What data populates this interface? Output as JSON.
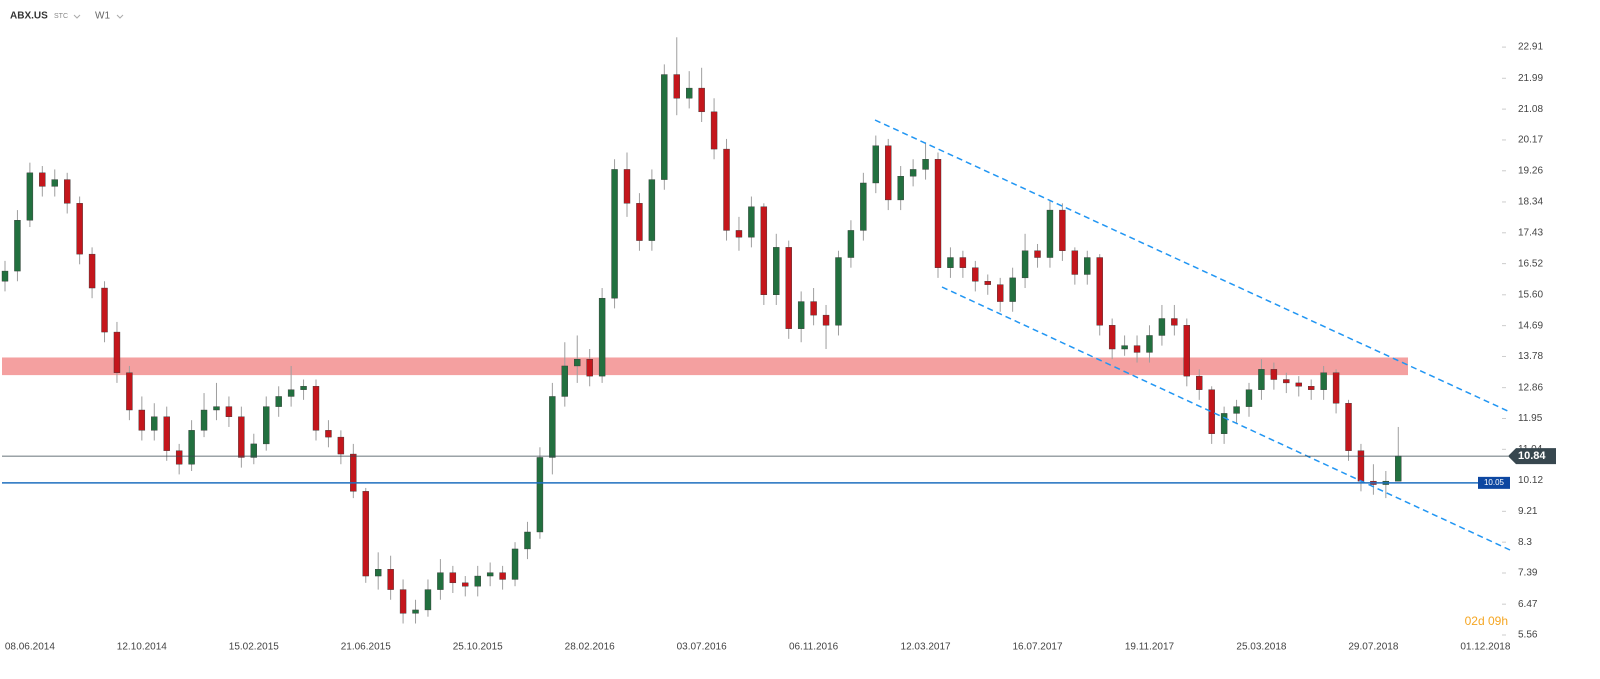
{
  "chart_data": {
    "type": "candlestick",
    "title": "ABX.US",
    "price_type": "STC",
    "interval": "W1",
    "countdown": "02d 09h",
    "up_color": "#22703f",
    "down_color": "#c4161c",
    "wick_color": "#9e9e9e",
    "categories": [
      null,
      null,
      "08.06.2014",
      null,
      null,
      null,
      null,
      null,
      null,
      null,
      null,
      "12.10.2014",
      null,
      null,
      null,
      null,
      null,
      null,
      null,
      null,
      "15.02.2015",
      null,
      null,
      null,
      null,
      null,
      null,
      null,
      null,
      "21.06.2015",
      null,
      null,
      null,
      null,
      null,
      null,
      null,
      null,
      "25.10.2015",
      null,
      null,
      null,
      null,
      null,
      null,
      null,
      null,
      "28.02.2016",
      null,
      null,
      null,
      null,
      null,
      null,
      null,
      null,
      "03.07.2016",
      null,
      null,
      null,
      null,
      null,
      null,
      null,
      null,
      "06.11.2016",
      null,
      null,
      null,
      null,
      null,
      null,
      null,
      null,
      "12.03.2017",
      null,
      null,
      null,
      null,
      null,
      null,
      null,
      null,
      "16.07.2017",
      null,
      null,
      null,
      null,
      null,
      null,
      null,
      null,
      "19.11.2017",
      null,
      null,
      null,
      null,
      null,
      null,
      null,
      null,
      "25.03.2018",
      null,
      null,
      null,
      null,
      null,
      null,
      null,
      null,
      "29.07.2018",
      null,
      null,
      null,
      null,
      null,
      null,
      null,
      null,
      "01.12.2018"
    ],
    "open": [
      16.0,
      16.3,
      17.8,
      19.2,
      18.8,
      19.0,
      18.3,
      16.8,
      15.8,
      14.5,
      13.3,
      12.2,
      11.6,
      12.0,
      11.0,
      10.6,
      11.6,
      12.2,
      12.3,
      12.0,
      10.8,
      11.2,
      12.3,
      12.6,
      12.8,
      12.9,
      11.6,
      11.4,
      10.9,
      9.8,
      7.3,
      7.5,
      6.9,
      6.2,
      6.3,
      6.9,
      7.4,
      7.1,
      7.0,
      7.3,
      7.4,
      7.2,
      8.1,
      8.6,
      10.8,
      12.6,
      13.5,
      13.7,
      13.2,
      15.5,
      19.3,
      18.3,
      17.2,
      19.0,
      22.1,
      21.4,
      21.7,
      21.0,
      19.9,
      17.5,
      17.3,
      18.2,
      15.6,
      17.0,
      14.6,
      15.4,
      15.0,
      14.7,
      16.7,
      17.5,
      18.9,
      20.0,
      18.4,
      19.1,
      19.3,
      19.6,
      16.4,
      16.7,
      16.4,
      16.0,
      15.9,
      15.4,
      16.1,
      16.9,
      16.7,
      18.1,
      16.9,
      16.2,
      16.7,
      14.7,
      14.0,
      14.1,
      13.9,
      14.4,
      14.9,
      14.7,
      13.2,
      12.8,
      11.5,
      12.1,
      12.3,
      12.8,
      13.4,
      13.1,
      13.0,
      12.9,
      12.8,
      13.3,
      12.4,
      11.0,
      10.1,
      10.0,
      10.1,
      null,
      null,
      null,
      null,
      null,
      null,
      null
    ],
    "high": [
      16.6,
      18.1,
      19.5,
      19.4,
      19.3,
      19.2,
      18.5,
      17.0,
      16.0,
      14.8,
      13.5,
      12.6,
      12.4,
      12.3,
      11.2,
      11.9,
      12.7,
      13.0,
      12.6,
      12.3,
      11.5,
      12.6,
      12.9,
      13.5,
      13.1,
      13.1,
      11.9,
      11.6,
      11.2,
      9.9,
      8.0,
      7.9,
      7.2,
      6.6,
      7.2,
      7.8,
      7.6,
      7.3,
      7.6,
      7.7,
      7.6,
      8.3,
      8.9,
      11.1,
      13.0,
      14.2,
      14.4,
      14.0,
      15.8,
      19.6,
      19.8,
      18.6,
      19.3,
      22.4,
      23.2,
      22.2,
      22.3,
      21.4,
      20.2,
      17.9,
      18.5,
      18.3,
      17.4,
      17.2,
      15.7,
      15.8,
      15.3,
      16.9,
      17.8,
      19.2,
      20.3,
      20.2,
      19.4,
      19.6,
      20.1,
      19.8,
      17.0,
      16.9,
      16.6,
      16.2,
      16.1,
      16.4,
      17.4,
      17.1,
      18.4,
      18.3,
      17.0,
      16.9,
      16.8,
      14.9,
      14.4,
      14.4,
      14.7,
      15.3,
      15.3,
      14.9,
      13.4,
      12.9,
      12.3,
      12.5,
      13.0,
      13.7,
      13.6,
      13.3,
      13.2,
      13.1,
      13.5,
      13.4,
      12.5,
      11.2,
      10.6,
      10.4,
      11.7,
      null,
      null,
      null,
      null,
      null,
      null,
      null
    ],
    "low": [
      15.7,
      16.0,
      17.6,
      18.5,
      18.5,
      18.0,
      16.5,
      15.5,
      14.2,
      13.0,
      11.9,
      11.3,
      11.3,
      10.7,
      10.3,
      10.4,
      11.4,
      11.9,
      11.7,
      10.5,
      10.6,
      11.0,
      12.0,
      12.3,
      12.5,
      11.3,
      11.1,
      10.6,
      9.6,
      7.1,
      6.9,
      6.6,
      5.9,
      5.9,
      6.1,
      6.6,
      6.8,
      6.7,
      6.7,
      7.0,
      6.9,
      7.0,
      7.8,
      8.4,
      10.3,
      12.3,
      13.0,
      12.9,
      13.0,
      15.2,
      17.9,
      16.9,
      16.9,
      18.7,
      20.9,
      21.1,
      20.7,
      19.6,
      17.2,
      16.9,
      17.0,
      15.3,
      15.3,
      14.3,
      14.2,
      14.7,
      14.0,
      14.4,
      16.4,
      17.2,
      18.6,
      18.1,
      18.1,
      18.8,
      19.0,
      16.1,
      16.1,
      16.1,
      15.7,
      15.6,
      15.1,
      15.1,
      15.8,
      16.4,
      16.4,
      16.6,
      15.9,
      15.9,
      14.4,
      13.7,
      13.8,
      13.6,
      13.6,
      14.1,
      14.4,
      12.9,
      12.5,
      11.2,
      11.2,
      11.8,
      12.0,
      12.5,
      12.8,
      12.7,
      12.6,
      12.5,
      12.5,
      12.1,
      10.7,
      9.8,
      9.7,
      9.6,
      10.1,
      null,
      null,
      null,
      null,
      null,
      null,
      null
    ],
    "close": [
      16.3,
      17.8,
      19.2,
      18.8,
      19.0,
      18.3,
      16.8,
      15.8,
      14.5,
      13.3,
      12.2,
      11.6,
      12.0,
      11.0,
      10.6,
      11.6,
      12.2,
      12.3,
      12.0,
      10.8,
      11.2,
      12.3,
      12.6,
      12.8,
      12.9,
      11.6,
      11.4,
      10.9,
      9.8,
      7.3,
      7.5,
      6.9,
      6.2,
      6.3,
      6.9,
      7.4,
      7.1,
      7.0,
      7.3,
      7.4,
      7.2,
      8.1,
      8.6,
      10.8,
      12.6,
      13.5,
      13.7,
      13.2,
      15.5,
      19.3,
      18.3,
      17.2,
      19.0,
      22.1,
      21.4,
      21.7,
      21.0,
      19.9,
      17.5,
      17.3,
      18.2,
      15.6,
      17.0,
      14.6,
      15.4,
      15.0,
      14.7,
      16.7,
      17.5,
      18.9,
      20.0,
      18.4,
      19.1,
      19.3,
      19.6,
      16.4,
      16.7,
      16.4,
      16.0,
      15.9,
      15.4,
      16.1,
      16.9,
      16.7,
      18.1,
      16.9,
      16.2,
      16.7,
      14.7,
      14.0,
      14.1,
      13.9,
      14.4,
      14.9,
      14.7,
      13.2,
      12.8,
      11.5,
      12.1,
      12.3,
      12.8,
      13.4,
      13.1,
      13.0,
      12.9,
      12.8,
      13.3,
      12.4,
      11.0,
      10.1,
      10.0,
      10.1,
      10.84,
      null,
      null,
      null,
      null,
      null,
      null,
      null
    ],
    "ylim": [
      4.97,
      24.3
    ],
    "yticks": [
      5.56,
      6.47,
      7.39,
      8.3,
      9.21,
      10.12,
      11.04,
      11.95,
      12.86,
      13.78,
      14.69,
      {
        "value": 15.6,
        "label": "15.60"
      },
      16.52,
      17.43,
      18.34,
      19.26,
      20.17,
      21.08,
      21.99,
      22.91
    ],
    "level": 10.05,
    "level_color": "#1f6fbf",
    "zone": [
      13.23,
      13.75
    ],
    "zone_color": "#f08080"
  }
}
